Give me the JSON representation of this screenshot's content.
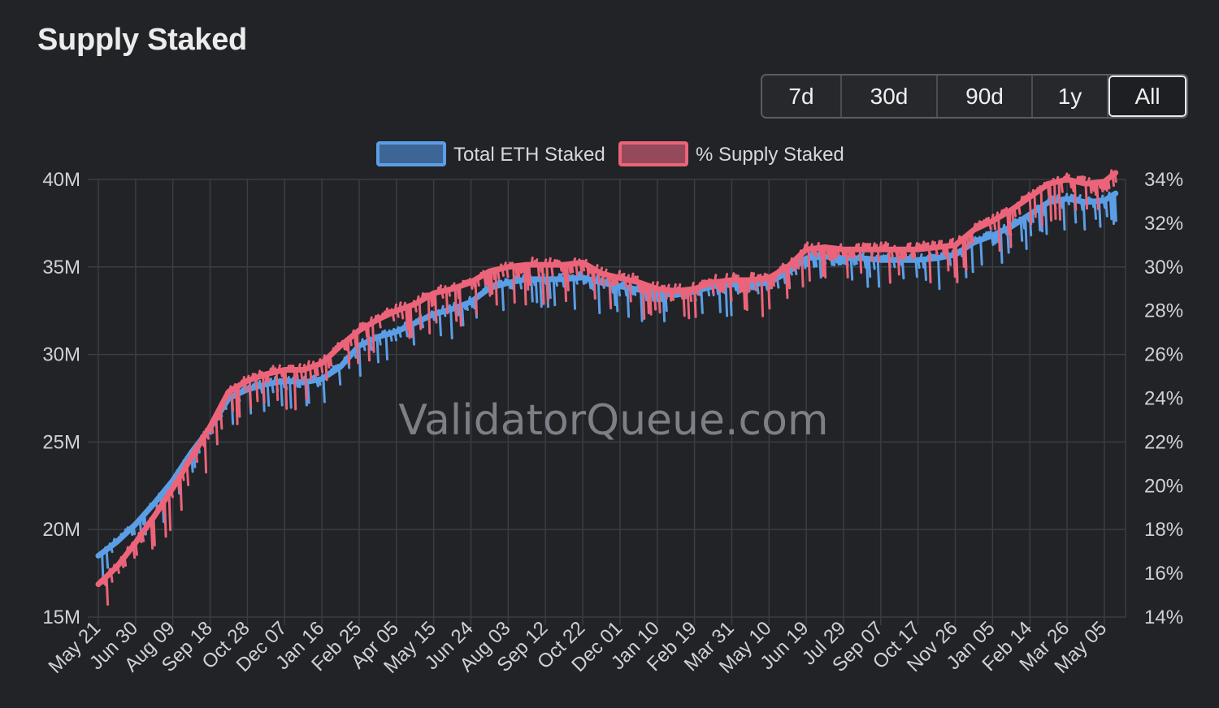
{
  "title": "Supply Staked",
  "range_buttons": [
    {
      "label": "7d",
      "active": false
    },
    {
      "label": "30d",
      "active": false
    },
    {
      "label": "90d",
      "active": false
    },
    {
      "label": "1y",
      "active": false
    },
    {
      "label": "All",
      "active": true
    }
  ],
  "watermark": "ValidatorQueue.com",
  "colors": {
    "blue": "#5b9ee6",
    "blue_fill": "#3d6596",
    "red": "#ec6479",
    "red_fill": "#944a5a",
    "grid": "#3a3d42",
    "background": "#212327"
  },
  "chart_data": {
    "type": "line",
    "legend": {
      "position": "top-center"
    },
    "grid": true,
    "x_tick_labels": [
      "May 21",
      "Jun 30",
      "Aug 09",
      "Sep 18",
      "Oct 28",
      "Dec 07",
      "Jan 16",
      "Feb 25",
      "Apr 05",
      "May 15",
      "Jun 24",
      "Aug 03",
      "Sep 12",
      "Oct 22",
      "Dec 01",
      "Jan 10",
      "Feb 19",
      "Mar 31",
      "May 10",
      "Jun 19",
      "Jul 29",
      "Sep 07",
      "Oct 17",
      "Nov 26",
      "Jan 05",
      "Feb 14",
      "Mar 26",
      "May 05"
    ],
    "y_left": {
      "ticks": [
        "15M",
        "20M",
        "25M",
        "30M",
        "35M",
        "40M"
      ],
      "min": 15,
      "max": 40,
      "unit": "M"
    },
    "y_right": {
      "ticks": [
        "14%",
        "16%",
        "18%",
        "20%",
        "22%",
        "24%",
        "26%",
        "28%",
        "30%",
        "32%",
        "34%"
      ],
      "min": 14,
      "max": 34
    },
    "series": [
      {
        "name": "Total ETH Staked",
        "axis": "left",
        "x_index": [
          0,
          0.5,
          1,
          1.5,
          2,
          2.5,
          3,
          3.5,
          4,
          4.5,
          5,
          5.5,
          6,
          6.5,
          7,
          7.5,
          8,
          8.5,
          9,
          9.5,
          10,
          10.5,
          11,
          11.5,
          12,
          12.5,
          13,
          13.5,
          14,
          14.5,
          15,
          15.5,
          16,
          16.5,
          17,
          17.5,
          18,
          18.5,
          19,
          19.5,
          20,
          20.5,
          21,
          21.5,
          22,
          22.5,
          23,
          23.5,
          24,
          24.5,
          25,
          25.5,
          26,
          26.5,
          27,
          27.3
        ],
        "values": [
          18.5,
          19.3,
          20.3,
          21.5,
          22.8,
          24.4,
          25.8,
          27.5,
          28.0,
          28.3,
          28.5,
          28.4,
          28.6,
          29.3,
          30.5,
          31.0,
          31.3,
          31.8,
          32.3,
          32.6,
          33.0,
          33.8,
          34.1,
          34.3,
          34.3,
          34.3,
          34.4,
          34.1,
          33.9,
          33.7,
          33.5,
          33.4,
          33.6,
          33.9,
          34.0,
          34.0,
          34.1,
          34.7,
          35.5,
          35.6,
          35.5,
          35.5,
          35.4,
          35.4,
          35.4,
          35.5,
          35.7,
          36.4,
          36.8,
          37.3,
          38.0,
          38.7,
          38.9,
          38.7,
          38.8,
          39.2
        ]
      },
      {
        "name": "% Supply Staked",
        "axis": "right",
        "x_index": [
          0,
          0.5,
          1,
          1.5,
          2,
          2.5,
          3,
          3.5,
          4,
          4.5,
          5,
          5.5,
          6,
          6.5,
          7,
          7.5,
          8,
          8.5,
          9,
          9.5,
          10,
          10.5,
          11,
          11.5,
          12,
          12.5,
          13,
          13.5,
          14,
          14.5,
          15,
          15.5,
          16,
          16.5,
          17,
          17.5,
          18,
          18.5,
          19,
          19.5,
          20,
          20.5,
          21,
          21.5,
          22,
          22.5,
          23,
          23.5,
          24,
          24.5,
          25,
          25.5,
          26,
          26.5,
          27,
          27.3
        ],
        "values": [
          15.5,
          16.3,
          17.4,
          18.6,
          19.9,
          21.3,
          22.7,
          24.3,
          24.8,
          25.1,
          25.3,
          25.3,
          25.6,
          26.4,
          27.1,
          27.6,
          28.0,
          28.3,
          28.8,
          29.0,
          29.3,
          29.8,
          30.0,
          30.1,
          30.1,
          30.1,
          30.2,
          29.7,
          29.5,
          29.3,
          29.0,
          28.9,
          29.0,
          29.3,
          29.4,
          29.4,
          29.5,
          30.0,
          30.8,
          30.9,
          30.8,
          30.8,
          30.8,
          30.8,
          30.8,
          30.9,
          31.0,
          31.7,
          32.1,
          32.6,
          33.2,
          33.8,
          34.0,
          33.8,
          33.9,
          34.3
        ]
      }
    ]
  }
}
